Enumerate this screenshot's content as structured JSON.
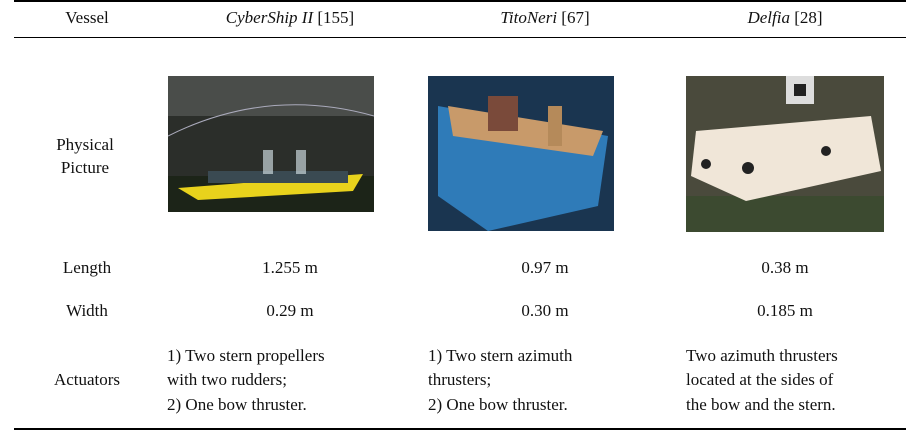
{
  "table": {
    "header": [
      "Vessel",
      {
        "name": "CyberShip II",
        "ref": "[155]"
      },
      {
        "name": "TitoNeri",
        "ref": "[67]"
      },
      {
        "name": "Delfia",
        "ref": "[28]"
      }
    ],
    "rows": [
      {
        "label": "Physical Picture"
      },
      {
        "label": "Length",
        "cells": [
          "1.255 m",
          "0.97 m",
          "0.38 m"
        ]
      },
      {
        "label": "Width",
        "cells": [
          "0.29 m",
          "0.30 m",
          "0.185 m"
        ]
      },
      {
        "label": "Actuators",
        "cells": [
          [
            "1) Two stern propellers",
            "with two rudders;",
            "2) One bow thruster."
          ],
          [
            "1) Two stern azimuth",
            "thrusters;",
            "2) One bow thruster."
          ],
          [
            "Two azimuth thrusters",
            "located at the sides of",
            "the bow and the stern."
          ]
        ]
      }
    ]
  }
}
